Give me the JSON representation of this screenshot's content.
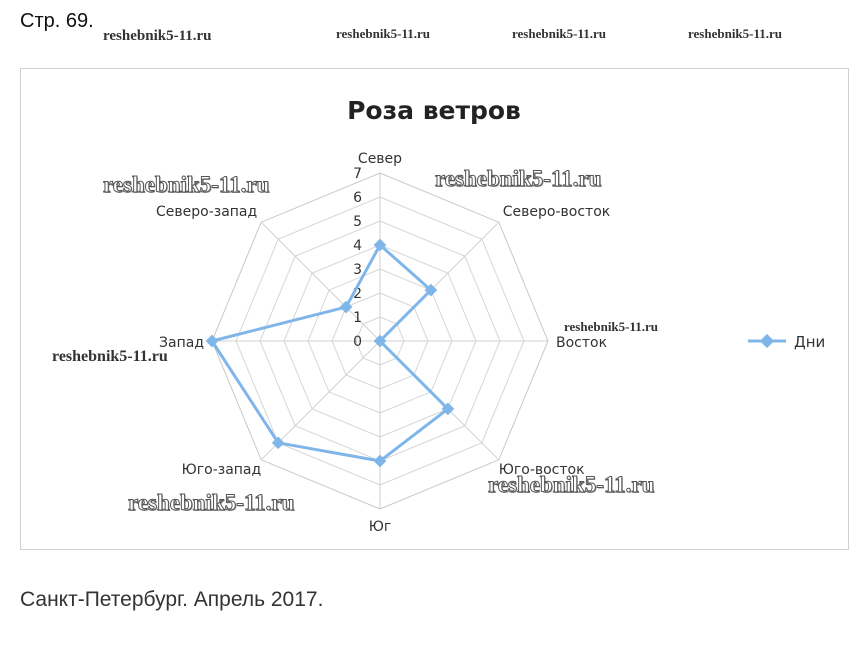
{
  "header": {
    "page_label": "Стр. 69."
  },
  "watermarks": {
    "small": [
      "reshebnik5-11.ru",
      "reshebnik5-11.ru",
      "reshebnik5-11.ru",
      "reshebnik5-11.ru",
      "reshebnik5-11.ru",
      "reshebnik5-11.ru"
    ],
    "large": [
      "reshebnik5-11.ru",
      "reshebnik5-11.ru",
      "reshebnik5-11.ru",
      "reshebnik5-11.ru"
    ]
  },
  "chart_data": {
    "type": "radar",
    "title": "Роза ветров",
    "categories": [
      "Север",
      "Северо-восток",
      "Восток",
      "Юго-восток",
      "Юг",
      "Юго-запад",
      "Запад",
      "Северо-запад"
    ],
    "series": [
      {
        "name": "Дни",
        "values": [
          4,
          3,
          0,
          4,
          5,
          6,
          7,
          2
        ]
      }
    ],
    "rlim": [
      0,
      7
    ],
    "ticks": [
      0,
      1,
      2,
      3,
      4,
      5,
      6,
      7
    ],
    "grid": true,
    "legend": "right",
    "series_color": "#7fb6ea"
  },
  "caption": "Санкт-Петербург. Апрель 2017."
}
